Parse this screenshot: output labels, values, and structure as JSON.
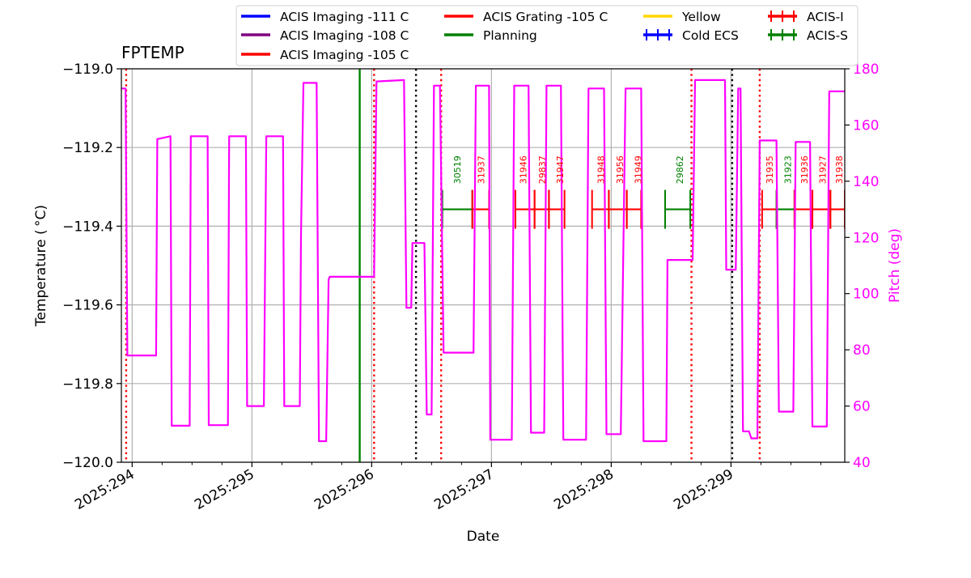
{
  "chart_data": {
    "type": "line",
    "title": "FPTEMP",
    "xlabel": "Date",
    "ylabel": "Temperature ($^\\circ$C)",
    "ylabel_display": "Temperature ( °C)",
    "y2label": "Pitch (deg)",
    "xlim": [
      293.91,
      299.95
    ],
    "ylim": [
      -120.0,
      -119.0
    ],
    "y2lim": [
      40,
      180
    ],
    "x_ticks": [
      294,
      295,
      296,
      297,
      298,
      299
    ],
    "x_tick_labels": [
      "2025:294",
      "2025:295",
      "2025:296",
      "2025:297",
      "2025:298",
      "2025:299"
    ],
    "y_ticks": [
      -120.0,
      -119.8,
      -119.6,
      -119.4,
      -119.2,
      -119.0
    ],
    "y_tick_labels": [
      "−120.0",
      "−119.8",
      "−119.6",
      "−119.4",
      "−119.2",
      "−119.0"
    ],
    "y2_ticks": [
      40,
      60,
      80,
      100,
      120,
      140,
      160,
      180
    ],
    "y2_tick_labels": [
      "40",
      "60",
      "80",
      "100",
      "120",
      "140",
      "160",
      "180"
    ],
    "grid": true,
    "legend_placement": "top",
    "legend": [
      {
        "label": "ACIS Imaging -111 C",
        "color": "#0000ff",
        "style": "line"
      },
      {
        "label": "ACIS Imaging -108 C",
        "color": "#800080",
        "style": "line"
      },
      {
        "label": "ACIS Imaging -105 C",
        "color": "#ff0000",
        "style": "line"
      },
      {
        "label": "ACIS Grating -105 C",
        "color": "#ff0000",
        "style": "line"
      },
      {
        "label": "Planning",
        "color": "#008000",
        "style": "line"
      },
      {
        "label": "Cold ECS",
        "color": "#0000ff",
        "style": "cross"
      },
      {
        "label": "Yellow",
        "color": "#ffd700",
        "style": "line"
      },
      {
        "label": "ACIS-I",
        "color": "#ff0000",
        "style": "cross"
      },
      {
        "label": "ACIS-S",
        "color": "#008000",
        "style": "cross"
      }
    ],
    "colors": {
      "pitch": "#ff00ff",
      "red": "#ff0000",
      "green": "#008000",
      "black": "#000000",
      "grid": "#b0b0b0"
    },
    "planning_line_x": 295.9,
    "red_dotted_x": [
      293.95,
      296.02,
      296.58,
      298.67,
      299.24
    ],
    "black_dotted_x": [
      296.37,
      299.01
    ],
    "pitch_series": [
      [
        293.91,
        173
      ],
      [
        293.945,
        173
      ],
      [
        293.96,
        78
      ],
      [
        294.2,
        78
      ],
      [
        294.21,
        155
      ],
      [
        294.32,
        156
      ],
      [
        294.33,
        53
      ],
      [
        294.48,
        53
      ],
      [
        294.49,
        156
      ],
      [
        294.63,
        156
      ],
      [
        294.64,
        53.2
      ],
      [
        294.8,
        53.2
      ],
      [
        294.81,
        156
      ],
      [
        294.95,
        156
      ],
      [
        294.96,
        60
      ],
      [
        295.1,
        60
      ],
      [
        295.12,
        156
      ],
      [
        295.26,
        156
      ],
      [
        295.27,
        60
      ],
      [
        295.4,
        60
      ],
      [
        295.41,
        121
      ],
      [
        295.43,
        175
      ],
      [
        295.54,
        175
      ],
      [
        295.56,
        47.5
      ],
      [
        295.62,
        47.5
      ],
      [
        295.64,
        105
      ],
      [
        295.65,
        106
      ],
      [
        296.02,
        106
      ],
      [
        296.04,
        175.5
      ],
      [
        296.27,
        176
      ],
      [
        296.29,
        95
      ],
      [
        296.33,
        95
      ],
      [
        296.34,
        118
      ],
      [
        296.44,
        118
      ],
      [
        296.46,
        57
      ],
      [
        296.5,
        57
      ],
      [
        296.52,
        174
      ],
      [
        296.57,
        174
      ],
      [
        296.6,
        79
      ],
      [
        296.85,
        79
      ],
      [
        296.87,
        174
      ],
      [
        296.98,
        174
      ],
      [
        296.99,
        48
      ],
      [
        297.17,
        48
      ],
      [
        297.19,
        174
      ],
      [
        297.31,
        174
      ],
      [
        297.33,
        50.5
      ],
      [
        297.44,
        50.5
      ],
      [
        297.46,
        174
      ],
      [
        297.58,
        174
      ],
      [
        297.6,
        48
      ],
      [
        297.79,
        48
      ],
      [
        297.81,
        173
      ],
      [
        297.94,
        173
      ],
      [
        297.96,
        50
      ],
      [
        298.08,
        50
      ],
      [
        298.12,
        173
      ],
      [
        298.25,
        173
      ],
      [
        298.27,
        47.5
      ],
      [
        298.46,
        47.5
      ],
      [
        298.47,
        112
      ],
      [
        298.68,
        112
      ],
      [
        298.7,
        176
      ],
      [
        298.95,
        176
      ],
      [
        298.96,
        108.5
      ],
      [
        299.04,
        108.5
      ],
      [
        299.06,
        173
      ],
      [
        299.08,
        173
      ],
      [
        299.1,
        51
      ],
      [
        299.15,
        51
      ],
      [
        299.17,
        48.5
      ],
      [
        299.22,
        48.5
      ],
      [
        299.24,
        154.5
      ],
      [
        299.38,
        154.5
      ],
      [
        299.4,
        58
      ],
      [
        299.52,
        58
      ],
      [
        299.54,
        154
      ],
      [
        299.66,
        154
      ],
      [
        299.68,
        52.7
      ],
      [
        299.8,
        52.7
      ],
      [
        299.82,
        172
      ],
      [
        299.95,
        172
      ]
    ],
    "obs_bars": [
      {
        "start": 296.59,
        "end": 296.84,
        "color": "#008000",
        "label": "30519",
        "label_x": 296.74
      },
      {
        "start": 296.84,
        "end": 296.98,
        "color": "#ff0000",
        "label": "31937",
        "label_x": 296.94
      },
      {
        "start": 297.2,
        "end": 297.36,
        "color": "#ff0000",
        "label": "31946",
        "label_x": 297.29
      },
      {
        "start": 297.36,
        "end": 297.48,
        "color": "#ff0000",
        "label": "29837",
        "label_x": 297.45
      },
      {
        "start": 297.48,
        "end": 297.61,
        "color": "#ff0000",
        "label": "31947",
        "label_x": 297.6
      },
      {
        "start": 297.84,
        "end": 297.98,
        "color": "#ff0000",
        "label": "31948",
        "label_x": 297.94
      },
      {
        "start": 297.98,
        "end": 298.13,
        "color": "#ff0000",
        "label": "31956",
        "label_x": 298.1
      },
      {
        "start": 298.13,
        "end": 298.25,
        "color": "#ff0000",
        "label": "31949",
        "label_x": 298.25
      },
      {
        "start": 298.45,
        "end": 298.66,
        "color": "#008000",
        "label": "29862",
        "label_x": 298.6
      },
      {
        "start": 299.26,
        "end": 299.38,
        "color": "#ff0000",
        "label": "31935",
        "label_x": 299.35
      },
      {
        "start": 299.38,
        "end": 299.53,
        "color": "#008000",
        "label": "31923",
        "label_x": 299.5
      },
      {
        "start": 299.53,
        "end": 299.68,
        "color": "#ff0000",
        "label": "31936",
        "label_x": 299.64
      },
      {
        "start": 299.68,
        "end": 299.83,
        "color": "#ff0000",
        "label": "31927",
        "label_x": 299.79
      },
      {
        "start": 299.83,
        "end": 299.95,
        "color": "#ff0000",
        "label": "31938",
        "label_x": 299.93
      }
    ],
    "obs_bar_y": 130,
    "obs_label_y": 139
  }
}
